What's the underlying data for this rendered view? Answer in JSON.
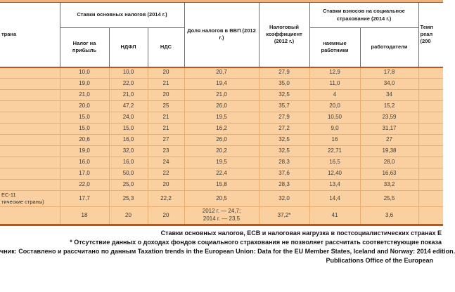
{
  "colors": {
    "row_bg": "#fbd0a0",
    "grid_line": "#e9ab6e",
    "heavy_line": "#bf5416",
    "header_border": "#6e6e6e"
  },
  "table": {
    "header": {
      "country": "трана",
      "group_main_taxes": "Ставки основных налогов (2014 г.)",
      "col_profit_tax": "Налог на прибыль",
      "col_personal_tax": "НДФЛ",
      "col_vat": "НДС",
      "col_gdp_share": "Доля налогов в ВВП (2012 г.)",
      "col_tax_ratio": "Налоговый коэффициент (2012 г.)",
      "group_social": "Ставки взносов на социальное страхование (2014 г.)",
      "col_employees": "наемные работники",
      "col_employers": "работодатели",
      "col_gdp_growth": "Темп\nреал\n(200"
    },
    "rows": [
      {
        "country": "",
        "cells": [
          "10,0",
          "10,0",
          "20",
          "20,7",
          "27,9",
          "12,9",
          "17,8",
          ""
        ]
      },
      {
        "country": "",
        "cells": [
          "19,0",
          "22,0",
          "21",
          "19,4",
          "35,0",
          "11,0",
          "34,0",
          ""
        ]
      },
      {
        "country": "",
        "cells": [
          "21,0",
          "21,0",
          "20",
          "21,0",
          "32,5",
          "4",
          "34",
          ""
        ]
      },
      {
        "country": "",
        "cells": [
          "20,0",
          "47,2",
          "25",
          "26,0",
          "35,7",
          "20,0",
          "15,2",
          ""
        ]
      },
      {
        "country": "",
        "cells": [
          "15,0",
          "24,0",
          "21",
          "19,5",
          "27,9",
          "10,50",
          "23,59",
          ""
        ]
      },
      {
        "country": "",
        "cells": [
          "15,0",
          "15,0",
          "21",
          "16,2",
          "27,2",
          "9,0",
          "31,17",
          ""
        ]
      },
      {
        "country": "",
        "cells": [
          "20,6",
          "16,0",
          "27",
          "26,0",
          "32,5",
          "16",
          "27",
          ""
        ]
      },
      {
        "country": "",
        "cells": [
          "19,0",
          "32,0",
          "23",
          "20,2",
          "32,5",
          "22,71",
          "19,38",
          ""
        ]
      },
      {
        "country": "",
        "cells": [
          "16,0",
          "16,0",
          "24",
          "19,5",
          "28,3",
          "16,5",
          "28,0",
          ""
        ]
      },
      {
        "country": "",
        "cells": [
          "17,0",
          "50,0",
          "22",
          "22,4",
          "37,6",
          "12,40",
          "16,63",
          ""
        ]
      },
      {
        "country": "",
        "cells": [
          "22,0",
          "25,0",
          "20",
          "15,8",
          "28,3",
          "13,4",
          "33,2",
          ""
        ]
      },
      {
        "country": "ЕС-11\nтические страны)",
        "cells": [
          "17,7",
          "25,3",
          "22,2",
          "20,5",
          "32,0",
          "14,4",
          "25,5",
          ""
        ]
      },
      {
        "country": "",
        "cells": [
          "18",
          "20",
          "20",
          "2012 г. — 24,7;\n2014 г. — 23,5",
          "37,2*",
          "41",
          "3,6",
          ""
        ]
      }
    ]
  },
  "footer": {
    "caption": "Ставки основных налогов, ЕСВ и налоговая нагрузка в постсоциалистических странах Е",
    "note": "* Отсутствие данных о доходах фондов социального страхования не позволяет рассчитать соответствующие показа",
    "source": "чник: Составлено и рассчитано по данным Taxation trends in the European Union: Data for the EU Member States, Iceland and Norway: 2014 edition.",
    "publisher": "Publications Office of the European"
  }
}
